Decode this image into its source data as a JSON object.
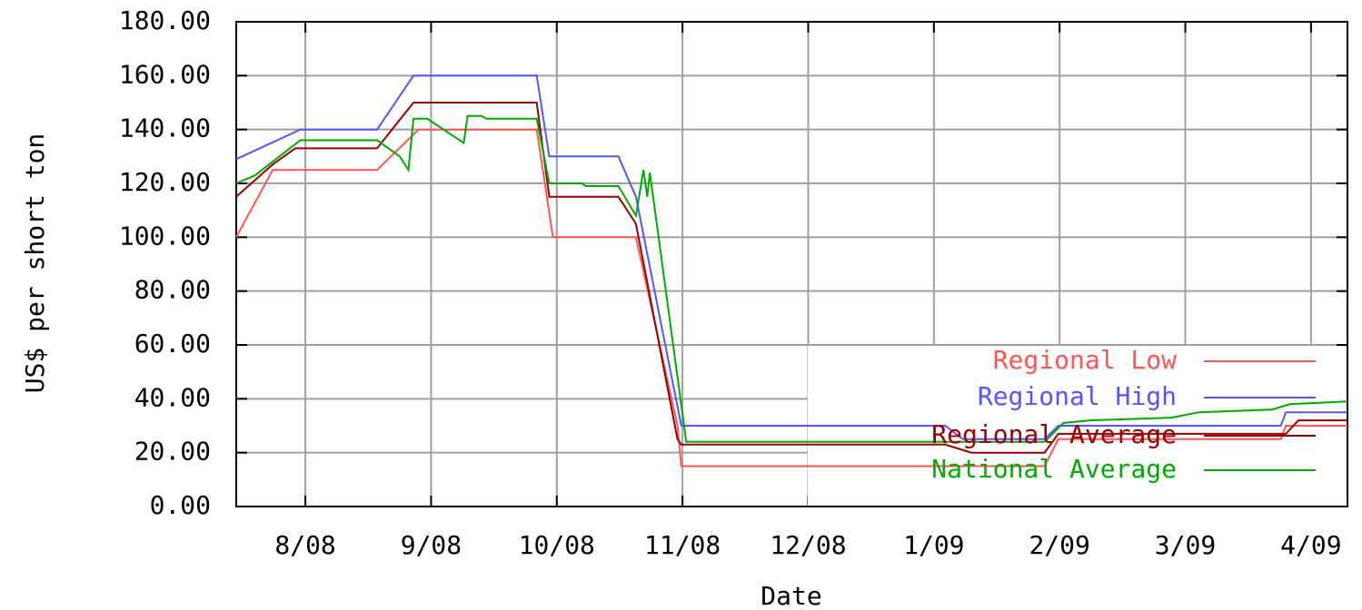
{
  "chart_data": {
    "type": "line",
    "xlabel": "Date",
    "ylabel": "US$ per short ton",
    "xlim": [
      7.45,
      16.29
    ],
    "xticks": [
      {
        "value": 8,
        "label": "8/08"
      },
      {
        "value": 9,
        "label": "9/08"
      },
      {
        "value": 10,
        "label": "10/08"
      },
      {
        "value": 11,
        "label": "11/08"
      },
      {
        "value": 12,
        "label": "12/08"
      },
      {
        "value": 13,
        "label": "1/09"
      },
      {
        "value": 14,
        "label": "2/09"
      },
      {
        "value": 15,
        "label": "3/09"
      },
      {
        "value": 16,
        "label": "4/09"
      }
    ],
    "ylim": [
      0,
      180
    ],
    "yticks": [
      {
        "value": 0,
        "label": "0.00"
      },
      {
        "value": 20,
        "label": "20.00"
      },
      {
        "value": 40,
        "label": "40.00"
      },
      {
        "value": 60,
        "label": "60.00"
      },
      {
        "value": 80,
        "label": "80.00"
      },
      {
        "value": 100,
        "label": "100.00"
      },
      {
        "value": 120,
        "label": "120.00"
      },
      {
        "value": 140,
        "label": "140.00"
      },
      {
        "value": 160,
        "label": "160.00"
      },
      {
        "value": 180,
        "label": "180.00"
      }
    ],
    "grid": true,
    "legend": "lower right",
    "series": [
      {
        "name": "Regional Low",
        "color": "#ff5555",
        "x": [
          7.45,
          7.74,
          8.57,
          8.9,
          9.84,
          9.97,
          10.63,
          10.96,
          10.99,
          13.88,
          13.99,
          15.76,
          15.8,
          16.29
        ],
        "values": [
          100,
          125,
          125,
          140,
          140,
          100,
          100,
          30,
          15,
          15,
          25,
          25,
          30,
          30
        ]
      },
      {
        "name": "Regional High",
        "color": "#5555ff",
        "x": [
          7.45,
          7.96,
          8.57,
          8.86,
          9.84,
          9.94,
          10.49,
          10.63,
          10.99,
          13.09,
          13.23,
          13.88,
          13.99,
          15.76,
          15.8,
          16.29
        ],
        "values": [
          129,
          140,
          140,
          160,
          160,
          130,
          130,
          115,
          30,
          30,
          25,
          25,
          30,
          30,
          35,
          35
        ]
      },
      {
        "name": "Regional Average",
        "color": "#990000",
        "x": [
          7.45,
          7.74,
          7.92,
          8.57,
          8.86,
          9.84,
          9.94,
          10.49,
          10.63,
          10.96,
          10.99,
          13.09,
          13.3,
          13.88,
          13.99,
          15.8,
          15.9,
          16.29
        ],
        "values": [
          115,
          127,
          133,
          133,
          150,
          150,
          115,
          115,
          105,
          25,
          23,
          23,
          20,
          20,
          27,
          27,
          32,
          32
        ]
      },
      {
        "name": "National Average",
        "color": "#00aa00",
        "x": [
          7.45,
          7.6,
          7.96,
          8.57,
          8.75,
          8.82,
          8.86,
          8.97,
          9.26,
          9.29,
          9.4,
          9.44,
          9.84,
          9.94,
          10.2,
          10.23,
          10.49,
          10.63,
          10.69,
          10.72,
          10.74,
          11.03,
          13.88,
          14.03,
          14.24,
          14.89,
          15.11,
          15.69,
          15.83,
          16.29
        ],
        "values": [
          120,
          123,
          136,
          136,
          130,
          125,
          144,
          144,
          135,
          145,
          145,
          144,
          144,
          120,
          120,
          119,
          119,
          108,
          125,
          115,
          124,
          24,
          24,
          31,
          32,
          33,
          35,
          36,
          38,
          39
        ]
      }
    ]
  }
}
